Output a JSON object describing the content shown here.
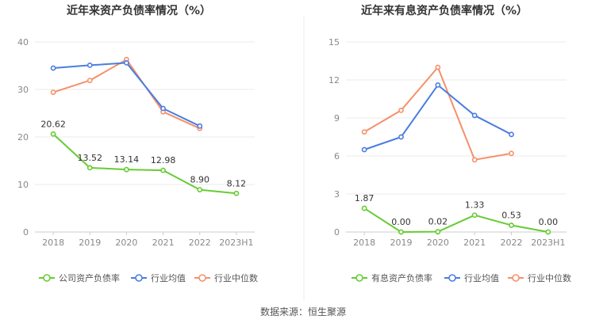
{
  "source": "数据来源：恒生聚源",
  "colors": {
    "company": "#66cc33",
    "avg": "#4a7de0",
    "median": "#f5906a"
  },
  "chart_data": [
    {
      "type": "line",
      "title": "近年来资产负债率情况（%）",
      "categories": [
        "2018",
        "2019",
        "2020",
        "2021",
        "2022",
        "2023H1"
      ],
      "ylim": [
        0,
        40
      ],
      "yticks": [
        "0",
        "10",
        "20",
        "30",
        "40"
      ],
      "grid": true,
      "legend_position": "bottom",
      "series": [
        {
          "name": "公司资产负债率",
          "values": [
            20.62,
            13.52,
            13.14,
            12.98,
            8.9,
            8.12
          ],
          "labels": [
            "20.62",
            "13.52",
            "13.14",
            "12.98",
            "8.90",
            "8.12"
          ]
        },
        {
          "name": "行业均值",
          "values": [
            34.5,
            35.1,
            35.6,
            26.0,
            22.3,
            null
          ]
        },
        {
          "name": "行业中位数",
          "values": [
            29.4,
            31.9,
            36.3,
            25.3,
            21.8,
            null
          ]
        }
      ]
    },
    {
      "type": "line",
      "title": "近年来有息资产负债率情况（%）",
      "categories": [
        "2018",
        "2019",
        "2020",
        "2021",
        "2022",
        "2023H1"
      ],
      "ylim": [
        0,
        15
      ],
      "yticks": [
        "0",
        "3",
        "6",
        "9",
        "12",
        "15"
      ],
      "grid": true,
      "legend_position": "bottom",
      "series": [
        {
          "name": "有息资产负债率",
          "values": [
            1.87,
            0.0,
            0.02,
            1.33,
            0.53,
            0.0
          ],
          "labels": [
            "1.87",
            "0.00",
            "0.02",
            "1.33",
            "0.53",
            "0.00"
          ]
        },
        {
          "name": "行业均值",
          "values": [
            6.5,
            7.5,
            11.6,
            9.2,
            7.7,
            null
          ]
        },
        {
          "name": "行业中位数",
          "values": [
            7.9,
            9.6,
            13.0,
            5.7,
            6.2,
            null
          ]
        }
      ]
    }
  ]
}
